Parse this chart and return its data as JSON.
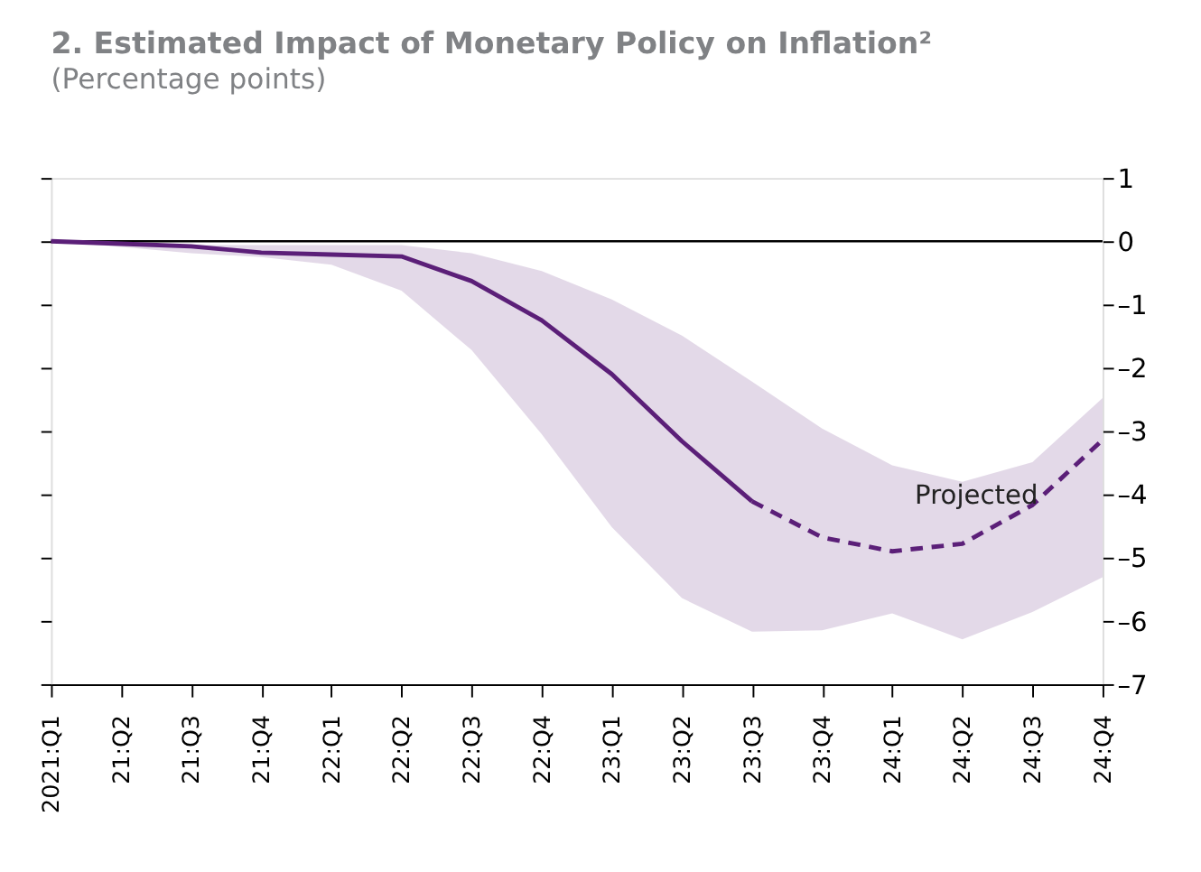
{
  "chart_data": {
    "type": "line",
    "title": "2. Estimated Impact of Monetary Policy on Inflation²",
    "subtitle": "(Percentage points)",
    "categories": [
      "2021:Q1",
      "21:Q2",
      "21:Q3",
      "21:Q4",
      "22:Q1",
      "22:Q2",
      "22:Q3",
      "22:Q4",
      "23:Q1",
      "23:Q2",
      "23:Q3",
      "23:Q4",
      "24:Q1",
      "24:Q2",
      "24:Q3",
      "24:Q4"
    ],
    "series": [
      {
        "color": "#5b1f78",
        "line_style": "solid",
        "values": [
          0,
          -0.04,
          -0.08,
          -0.18,
          -0.21,
          -0.24,
          -0.63,
          -1.25,
          -2.1,
          -3.16,
          -4.11,
          null,
          null,
          null,
          null,
          null
        ],
        "lower": [
          0,
          -0.09,
          -0.19,
          -0.25,
          -0.37,
          -0.78,
          -1.72,
          -3.05,
          -4.52,
          -5.64,
          -6.17,
          -6.15,
          -5.88,
          -6.29,
          -5.86,
          -5.31
        ],
        "upper": [
          0,
          -0.05,
          -0.06,
          -0.06,
          -0.06,
          -0.06,
          -0.19,
          -0.47,
          -0.92,
          -1.49,
          -2.22,
          -2.96,
          -3.54,
          -3.8,
          -3.49,
          -2.48
        ]
      },
      {
        "name": "Projected",
        "color": "#5b1f78",
        "line_style": "dashed",
        "values": [
          null,
          null,
          null,
          null,
          null,
          null,
          null,
          null,
          null,
          null,
          -4.11,
          -4.68,
          -4.9,
          -4.78,
          -4.17,
          -3.14
        ]
      }
    ],
    "ref_lines": [
      {
        "axis": "y",
        "value": 0,
        "color": "#000000"
      }
    ],
    "ylim": [
      -7,
      1
    ],
    "yticks": [
      1,
      0,
      {
        "value": -1,
        "label": "–1"
      },
      {
        "value": -2,
        "label": "–2"
      },
      {
        "value": -3,
        "label": "–3"
      },
      {
        "value": -4,
        "label": "–4"
      },
      {
        "value": -5,
        "label": "–5"
      },
      {
        "value": -6,
        "label": "–6"
      },
      {
        "value": -7,
        "label": "–7"
      }
    ],
    "grid": false,
    "marker": "none"
  }
}
